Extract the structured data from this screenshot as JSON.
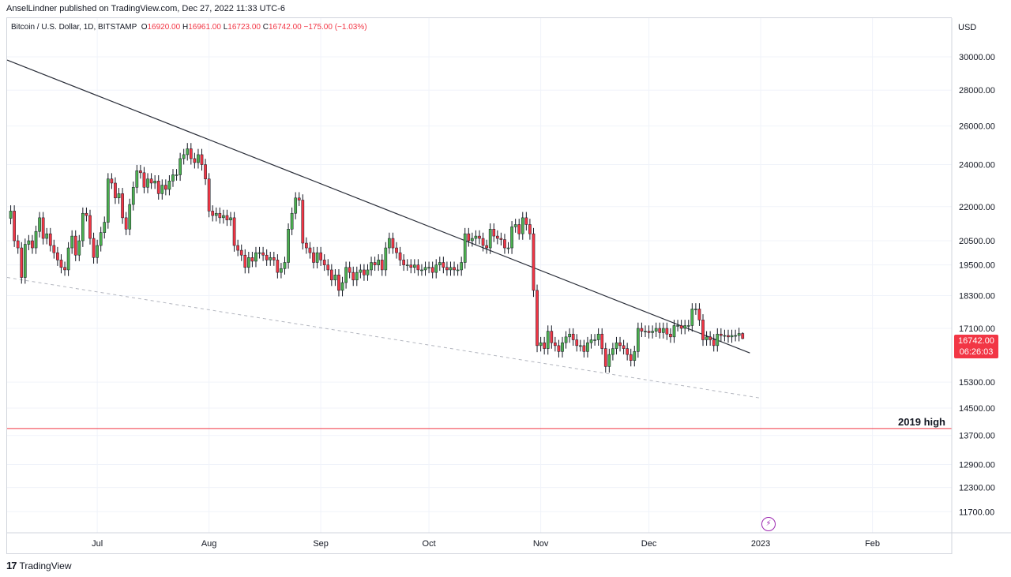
{
  "header": {
    "published": "AnselLindner published on TradingView.com, Dec 27, 2022 11:33 UTC-6"
  },
  "legend": {
    "symbol": "Bitcoin / U.S. Dollar, 1D, BITSTAMP",
    "open_label": "O",
    "open": "16920.00",
    "high_label": "H",
    "high": "16961.00",
    "low_label": "L",
    "low": "16723.00",
    "close_label": "C",
    "close": "16742.00",
    "change": "−175.00 (−1.03%)"
  },
  "price_axis": {
    "currency": "USD"
  },
  "last_price": {
    "price": "16742.00",
    "countdown": "06:26:03",
    "color": "#f23645"
  },
  "annotation": {
    "text": "2019 high"
  },
  "footer": {
    "brand": "TradingView",
    "logo_mark": "17"
  },
  "colors": {
    "up": "#4caf50",
    "down": "#f23645",
    "trendline": "#2a2e39",
    "support": "#b2b5be",
    "level": "#f23645"
  },
  "chart_data": {
    "type": "candlestick",
    "scale": "log",
    "ylim": [
      11200,
      32500
    ],
    "yticks": [
      30000,
      28000,
      26000,
      24000,
      22000,
      20500,
      19500,
      18300,
      17100,
      15300,
      14500,
      13700,
      12900,
      12300,
      11700
    ],
    "ytick_labels": [
      "30000.00",
      "28000.00",
      "26000.00",
      "24000.00",
      "22000.00",
      "20500.00",
      "19500.00",
      "18300.00",
      "17100.00",
      "15300.00",
      "14500.00",
      "13700.00",
      "12900.00",
      "12300.00",
      "11700.00"
    ],
    "xlim": [
      "2022-06-06",
      "2023-02-23"
    ],
    "xticks": [
      {
        "date": "2022-07-01",
        "label": "Jul"
      },
      {
        "date": "2022-08-01",
        "label": "Aug"
      },
      {
        "date": "2022-09-01",
        "label": "Sep"
      },
      {
        "date": "2022-10-01",
        "label": "Oct"
      },
      {
        "date": "2022-11-01",
        "label": "Nov"
      },
      {
        "date": "2022-12-01",
        "label": "Dec"
      },
      {
        "date": "2023-01-01",
        "label": "2023"
      },
      {
        "date": "2023-02-01",
        "label": "Feb"
      }
    ],
    "closes": [
      [
        "2022-06-07",
        21800
      ],
      [
        "2022-06-08",
        20500
      ],
      [
        "2022-06-09",
        20200
      ],
      [
        "2022-06-10",
        19000
      ],
      [
        "2022-06-11",
        20350
      ],
      [
        "2022-06-12",
        20500
      ],
      [
        "2022-06-13",
        20200
      ],
      [
        "2022-06-14",
        20900
      ],
      [
        "2022-06-15",
        21500
      ],
      [
        "2022-06-16",
        20600
      ],
      [
        "2022-06-17",
        20800
      ],
      [
        "2022-06-18",
        20300
      ],
      [
        "2022-06-19",
        20000
      ],
      [
        "2022-06-20",
        19700
      ],
      [
        "2022-06-21",
        19400
      ],
      [
        "2022-06-22",
        19300
      ],
      [
        "2022-06-23",
        20200
      ],
      [
        "2022-06-24",
        20700
      ],
      [
        "2022-06-25",
        19900
      ],
      [
        "2022-06-26",
        20500
      ],
      [
        "2022-06-27",
        21700
      ],
      [
        "2022-06-28",
        21600
      ],
      [
        "2022-06-29",
        20600
      ],
      [
        "2022-06-30",
        19800
      ],
      [
        "2022-07-01",
        20300
      ],
      [
        "2022-07-02",
        20850
      ],
      [
        "2022-07-03",
        21300
      ],
      [
        "2022-07-04",
        23300
      ],
      [
        "2022-07-05",
        23100
      ],
      [
        "2022-07-06",
        22400
      ],
      [
        "2022-07-07",
        22600
      ],
      [
        "2022-07-08",
        21500
      ],
      [
        "2022-07-09",
        21000
      ],
      [
        "2022-07-10",
        22100
      ],
      [
        "2022-07-11",
        22900
      ],
      [
        "2022-07-12",
        23700
      ],
      [
        "2022-07-13",
        23600
      ],
      [
        "2022-07-14",
        22900
      ],
      [
        "2022-07-15",
        23300
      ],
      [
        "2022-07-16",
        23100
      ],
      [
        "2022-07-17",
        23200
      ],
      [
        "2022-07-18",
        22600
      ],
      [
        "2022-07-19",
        23000
      ],
      [
        "2022-07-20",
        22800
      ],
      [
        "2022-07-21",
        23200
      ],
      [
        "2022-07-22",
        23500
      ],
      [
        "2022-07-23",
        23500
      ],
      [
        "2022-07-24",
        24300
      ],
      [
        "2022-07-25",
        24500
      ],
      [
        "2022-07-26",
        24800
      ],
      [
        "2022-07-27",
        24300
      ],
      [
        "2022-07-28",
        24100
      ],
      [
        "2022-07-29",
        24500
      ],
      [
        "2022-07-30",
        24000
      ],
      [
        "2022-07-31",
        23300
      ],
      [
        "2022-08-01",
        21800
      ],
      [
        "2022-08-02",
        21600
      ],
      [
        "2022-08-03",
        21700
      ],
      [
        "2022-08-04",
        21500
      ],
      [
        "2022-08-05",
        21600
      ],
      [
        "2022-08-06",
        21400
      ],
      [
        "2022-08-07",
        21500
      ],
      [
        "2022-08-08",
        20300
      ],
      [
        "2022-08-09",
        20100
      ],
      [
        "2022-08-10",
        19900
      ],
      [
        "2022-08-11",
        19400
      ],
      [
        "2022-08-12",
        19800
      ],
      [
        "2022-08-13",
        19650
      ],
      [
        "2022-08-14",
        20000
      ],
      [
        "2022-08-15",
        20000
      ],
      [
        "2022-08-16",
        19900
      ],
      [
        "2022-08-17",
        19700
      ],
      [
        "2022-08-18",
        19800
      ],
      [
        "2022-08-19",
        19700
      ],
      [
        "2022-08-20",
        19200
      ],
      [
        "2022-08-21",
        19350
      ],
      [
        "2022-08-22",
        19600
      ],
      [
        "2022-08-23",
        21000
      ],
      [
        "2022-08-24",
        21700
      ],
      [
        "2022-08-25",
        22400
      ],
      [
        "2022-08-26",
        22300
      ],
      [
        "2022-08-27",
        20400
      ],
      [
        "2022-08-28",
        20200
      ],
      [
        "2022-08-29",
        20000
      ],
      [
        "2022-08-30",
        19600
      ],
      [
        "2022-08-31",
        20000
      ],
      [
        "2022-09-01",
        19700
      ],
      [
        "2022-09-02",
        19500
      ],
      [
        "2022-09-03",
        19300
      ],
      [
        "2022-09-04",
        18900
      ],
      [
        "2022-09-05",
        19100
      ],
      [
        "2022-09-06",
        18500
      ],
      [
        "2022-09-07",
        18800
      ],
      [
        "2022-09-08",
        19400
      ],
      [
        "2022-09-09",
        19200
      ],
      [
        "2022-09-10",
        18900
      ],
      [
        "2022-09-11",
        19200
      ],
      [
        "2022-09-12",
        19300
      ],
      [
        "2022-09-13",
        19100
      ],
      [
        "2022-09-14",
        19300
      ],
      [
        "2022-09-15",
        19600
      ],
      [
        "2022-09-16",
        19500
      ],
      [
        "2022-09-17",
        19700
      ],
      [
        "2022-09-18",
        19300
      ],
      [
        "2022-09-19",
        20200
      ],
      [
        "2022-09-20",
        20600
      ],
      [
        "2022-09-21",
        20200
      ],
      [
        "2022-09-22",
        20000
      ],
      [
        "2022-09-23",
        19700
      ],
      [
        "2022-09-24",
        19500
      ],
      [
        "2022-09-25",
        19500
      ],
      [
        "2022-09-26",
        19400
      ],
      [
        "2022-09-27",
        19500
      ],
      [
        "2022-09-28",
        19300
      ],
      [
        "2022-09-29",
        19300
      ],
      [
        "2022-09-30",
        19400
      ],
      [
        "2022-10-01",
        19400
      ],
      [
        "2022-10-02",
        19200
      ],
      [
        "2022-10-03",
        19500
      ],
      [
        "2022-10-04",
        19600
      ],
      [
        "2022-10-05",
        19400
      ],
      [
        "2022-10-06",
        19300
      ],
      [
        "2022-10-07",
        19400
      ],
      [
        "2022-10-08",
        19300
      ],
      [
        "2022-10-09",
        19300
      ],
      [
        "2022-10-10",
        19600
      ],
      [
        "2022-10-11",
        20800
      ],
      [
        "2022-10-12",
        20500
      ],
      [
        "2022-10-13",
        20600
      ],
      [
        "2022-10-14",
        20700
      ],
      [
        "2022-10-15",
        20600
      ],
      [
        "2022-10-16",
        20300
      ],
      [
        "2022-10-17",
        20200
      ],
      [
        "2022-10-18",
        21000
      ],
      [
        "2022-10-19",
        20700
      ],
      [
        "2022-10-20",
        20600
      ],
      [
        "2022-10-21",
        20550
      ],
      [
        "2022-10-22",
        20200
      ],
      [
        "2022-10-23",
        20200
      ],
      [
        "2022-10-24",
        21100
      ],
      [
        "2022-10-25",
        21200
      ],
      [
        "2022-10-26",
        20800
      ],
      [
        "2022-10-27",
        21500
      ],
      [
        "2022-10-28",
        21200
      ],
      [
        "2022-10-29",
        20800
      ],
      [
        "2022-10-30",
        18500
      ],
      [
        "2022-10-31",
        16500
      ],
      [
        "2022-11-01",
        16600
      ],
      [
        "2022-11-02",
        16400
      ],
      [
        "2022-11-03",
        17000
      ],
      [
        "2022-11-04",
        16600
      ],
      [
        "2022-11-05",
        16500
      ],
      [
        "2022-11-06",
        16300
      ],
      [
        "2022-11-07",
        16600
      ],
      [
        "2022-11-08",
        16800
      ],
      [
        "2022-11-09",
        16900
      ],
      [
        "2022-11-10",
        16700
      ],
      [
        "2022-11-11",
        16500
      ],
      [
        "2022-11-12",
        16500
      ],
      [
        "2022-11-13",
        16300
      ],
      [
        "2022-11-14",
        16600
      ],
      [
        "2022-11-15",
        16700
      ],
      [
        "2022-11-16",
        16700
      ],
      [
        "2022-11-17",
        16900
      ],
      [
        "2022-11-18",
        16400
      ],
      [
        "2022-11-19",
        15800
      ],
      [
        "2022-11-20",
        16200
      ],
      [
        "2022-11-21",
        16400
      ],
      [
        "2022-11-22",
        16600
      ],
      [
        "2022-11-23",
        16500
      ],
      [
        "2022-11-24",
        16400
      ],
      [
        "2022-11-25",
        16200
      ],
      [
        "2022-11-26",
        16000
      ],
      [
        "2022-11-27",
        16300
      ],
      [
        "2022-11-28",
        17100
      ],
      [
        "2022-11-29",
        17000
      ],
      [
        "2022-11-30",
        17000
      ],
      [
        "2022-12-01",
        16950
      ],
      [
        "2022-12-02",
        17000
      ],
      [
        "2022-12-03",
        17100
      ],
      [
        "2022-12-04",
        16950
      ],
      [
        "2022-12-05",
        17100
      ],
      [
        "2022-12-06",
        16900
      ],
      [
        "2022-12-07",
        16800
      ],
      [
        "2022-12-08",
        17200
      ],
      [
        "2022-12-09",
        17200
      ],
      [
        "2022-12-10",
        17100
      ],
      [
        "2022-12-11",
        17200
      ],
      [
        "2022-12-12",
        17200
      ],
      [
        "2022-12-13",
        17800
      ],
      [
        "2022-12-14",
        17800
      ],
      [
        "2022-12-15",
        17400
      ],
      [
        "2022-12-16",
        16700
      ],
      [
        "2022-12-17",
        16800
      ],
      [
        "2022-12-18",
        16700
      ],
      [
        "2022-12-19",
        16500
      ],
      [
        "2022-12-20",
        16900
      ],
      [
        "2022-12-21",
        16850
      ],
      [
        "2022-12-22",
        16850
      ],
      [
        "2022-12-23",
        16800
      ],
      [
        "2022-12-24",
        16850
      ],
      [
        "2022-12-25",
        16850
      ],
      [
        "2022-12-26",
        16920
      ],
      [
        "2022-12-27",
        16742
      ]
    ],
    "last_candle": {
      "date": "2022-12-27",
      "open": 16920,
      "high": 16961,
      "low": 16723,
      "close": 16742
    },
    "trendline": {
      "from": [
        "2022-06-06",
        29800
      ],
      "to": [
        "2022-12-29",
        16250
      ]
    },
    "support_line": {
      "from": [
        "2022-06-06",
        19000
      ],
      "to": [
        "2023-01-01",
        14800
      ]
    },
    "level": {
      "value": 13900,
      "label": "2019 high"
    }
  }
}
